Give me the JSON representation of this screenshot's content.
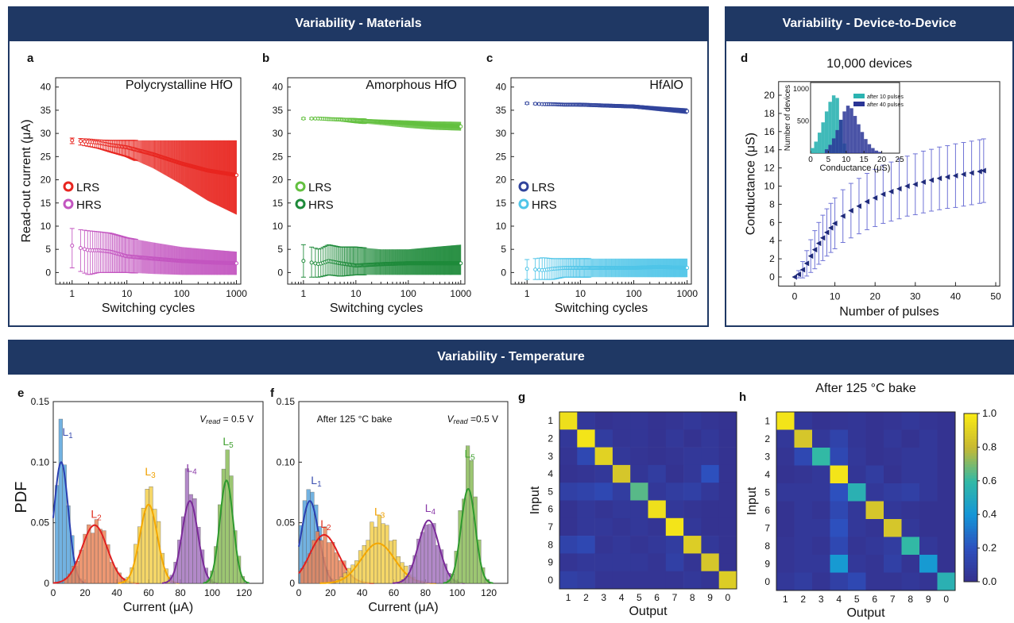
{
  "banners": {
    "materials": "Variability - Materials",
    "device": "Variability - Device-to-Device",
    "temperature": "Variability - Temperature"
  },
  "colors": {
    "banner": "#1f3864",
    "lrs_a": "#e8251f",
    "hrs_a": "#c355c0",
    "lrs_b": "#63c03f",
    "hrs_b": "#1e8a3a",
    "lrs_c": "#31449c",
    "hrs_c": "#4fc5e8",
    "d_series": "#1f2a7a",
    "d_err": "#6f73d6",
    "inset_10": "#2bb3b1",
    "inset_40": "#2a3596"
  },
  "chart_data": [
    {
      "panel": "a",
      "type": "scatter",
      "title": "Polycrystalline HfO",
      "xlabel": "Switching cycles",
      "ylabel": "Read-out current (μA)",
      "xscale": "log",
      "xlim": [
        0.5,
        1200
      ],
      "ylim": [
        -2.5,
        42
      ],
      "xticks": [
        1,
        10,
        100,
        1000
      ],
      "yticks": [
        0,
        5,
        10,
        15,
        20,
        25,
        30,
        35,
        40
      ],
      "series": [
        {
          "name": "LRS",
          "x": [
            1,
            2,
            3,
            5,
            10,
            30,
            100,
            300,
            1000
          ],
          "mean": [
            28.5,
            28.2,
            28.0,
            27.5,
            27.0,
            25.5,
            23.5,
            22.0,
            21.0
          ],
          "err_low": [
            27.8,
            27.2,
            26.8,
            26.0,
            25.0,
            22.5,
            19.0,
            15.5,
            12.5
          ],
          "err_high": [
            29.0,
            28.8,
            28.6,
            28.5,
            28.5,
            28.5,
            28.5,
            28.5,
            28.5
          ]
        },
        {
          "name": "HRS",
          "x": [
            1,
            2,
            3,
            5,
            10,
            30,
            100,
            300,
            1000
          ],
          "mean": [
            5.8,
            4.8,
            4.8,
            4.5,
            3.5,
            3.0,
            2.5,
            2.2,
            2.0
          ],
          "err_low": [
            1.0,
            -0.5,
            0.0,
            0.0,
            0.0,
            -0.3,
            -0.5,
            -0.5,
            -0.5
          ],
          "err_high": [
            9.5,
            9.0,
            8.8,
            8.5,
            7.5,
            6.5,
            5.5,
            5.0,
            4.5
          ]
        }
      ]
    },
    {
      "panel": "b",
      "type": "scatter",
      "title": "Amorphous HfO",
      "xlabel": "Switching cycles",
      "ylabel": "",
      "xscale": "log",
      "xlim": [
        0.5,
        1200
      ],
      "ylim": [
        -2.5,
        42
      ],
      "xticks": [
        1,
        10,
        100,
        1000
      ],
      "yticks": [
        0,
        5,
        10,
        15,
        20,
        25,
        30,
        35,
        40
      ],
      "series": [
        {
          "name": "LRS",
          "x": [
            1,
            2,
            3,
            5,
            10,
            30,
            100,
            300,
            1000
          ],
          "mean": [
            33.2,
            33.2,
            33.1,
            33.0,
            32.8,
            32.5,
            32.2,
            31.8,
            31.5
          ],
          "err_low": [
            33.0,
            33.0,
            32.8,
            32.7,
            32.3,
            31.8,
            31.2,
            30.8,
            30.6
          ],
          "err_high": [
            33.4,
            33.4,
            33.3,
            33.3,
            33.2,
            33.0,
            32.8,
            32.6,
            32.5
          ]
        },
        {
          "name": "HRS",
          "x": [
            1,
            2,
            3,
            5,
            10,
            30,
            100,
            300,
            1000
          ],
          "mean": [
            2.5,
            1.8,
            2.5,
            2.0,
            1.5,
            1.8,
            2.0,
            2.0,
            2.0
          ],
          "err_low": [
            -1.0,
            -1.0,
            -0.5,
            -0.8,
            -0.5,
            -0.5,
            -0.5,
            -0.5,
            -0.5
          ],
          "err_high": [
            6.0,
            5.0,
            6.0,
            5.5,
            5.5,
            5.0,
            5.0,
            5.5,
            6.0
          ]
        }
      ]
    },
    {
      "panel": "c",
      "type": "scatter",
      "title": "HfAlO",
      "xlabel": "Switching cycles",
      "ylabel": "",
      "xscale": "log",
      "xlim": [
        0.5,
        1200
      ],
      "ylim": [
        -2.5,
        42
      ],
      "xticks": [
        1,
        10,
        100,
        1000
      ],
      "yticks": [
        0,
        5,
        10,
        15,
        20,
        25,
        30,
        35,
        40
      ],
      "series": [
        {
          "name": "LRS",
          "x": [
            1,
            2,
            3,
            5,
            10,
            30,
            100,
            300,
            1000
          ],
          "mean": [
            36.5,
            36.3,
            36.3,
            36.2,
            36.2,
            36.0,
            35.8,
            35.3,
            34.8
          ],
          "err_low": [
            36.3,
            36.1,
            36.1,
            36.0,
            35.9,
            35.7,
            35.4,
            34.8,
            34.2
          ],
          "err_high": [
            36.7,
            36.5,
            36.5,
            36.4,
            36.4,
            36.3,
            36.2,
            35.8,
            35.4
          ]
        },
        {
          "name": "HRS",
          "x": [
            1,
            2,
            3,
            5,
            10,
            30,
            100,
            300,
            1000
          ],
          "mean": [
            0.8,
            0.5,
            0.8,
            1.0,
            1.0,
            1.0,
            1.0,
            1.2,
            1.0
          ],
          "err_low": [
            -1.5,
            -1.5,
            -1.5,
            -1.0,
            -1.0,
            -1.0,
            -1.0,
            -1.0,
            -1.0
          ],
          "err_high": [
            2.8,
            3.2,
            3.0,
            3.0,
            3.0,
            3.0,
            3.0,
            3.0,
            3.0
          ]
        }
      ]
    },
    {
      "panel": "d",
      "type": "line",
      "title": "10,000 devices",
      "xlabel": "Number of pulses",
      "ylabel": "Conductance (μS)",
      "xlim": [
        -4,
        51
      ],
      "ylim": [
        -1,
        21.5
      ],
      "xticks": [
        0,
        10,
        20,
        30,
        40,
        50
      ],
      "yticks": [
        0,
        2,
        4,
        6,
        8,
        10,
        12,
        14,
        16,
        18,
        20
      ],
      "x": [
        0,
        1,
        2,
        3,
        4,
        5,
        6,
        7,
        8,
        9,
        10,
        12,
        14,
        16,
        18,
        20,
        22,
        24,
        26,
        28,
        30,
        32,
        34,
        36,
        38,
        40,
        42,
        44,
        46,
        47
      ],
      "mean": [
        0,
        0.3,
        0.8,
        1.5,
        2.3,
        3.0,
        3.7,
        4.3,
        4.9,
        5.4,
        5.9,
        6.7,
        7.3,
        7.8,
        8.3,
        8.7,
        9.1,
        9.4,
        9.7,
        10.0,
        10.2,
        10.45,
        10.65,
        10.85,
        11.0,
        11.15,
        11.3,
        11.45,
        11.6,
        11.7
      ],
      "std": [
        0,
        0.4,
        0.9,
        1.4,
        1.8,
        2.1,
        2.3,
        2.5,
        2.6,
        2.7,
        2.8,
        2.9,
        3.0,
        3.05,
        3.1,
        3.15,
        3.2,
        3.25,
        3.3,
        3.3,
        3.35,
        3.4,
        3.4,
        3.45,
        3.45,
        3.5,
        3.5,
        3.5,
        3.5,
        3.5
      ],
      "inset": {
        "type": "histogram",
        "xlabel": "Conductance (μS)",
        "ylabel": "Number of devices",
        "xlim": [
          0,
          25
        ],
        "xticks": [
          0,
          5,
          10,
          15,
          20,
          25
        ],
        "yticks": [
          500,
          1000
        ],
        "series": [
          {
            "name": "after 10 pulses",
            "bin_centers": [
              0.5,
              1.5,
              2.5,
              3.5,
              4.5,
              5.5,
              6.5,
              7.5,
              8.5,
              9.5
            ],
            "counts": [
              80,
              180,
              320,
              480,
              650,
              800,
              900,
              860,
              520,
              150
            ]
          },
          {
            "name": "after 40 pulses",
            "bin_centers": [
              4.5,
              5.5,
              6.5,
              7.5,
              8.5,
              9.5,
              10.5,
              11.5,
              12.5,
              13.5,
              14.5,
              15.5,
              16.5,
              17.5,
              18.5,
              19.5
            ],
            "counts": [
              60,
              130,
              230,
              360,
              520,
              650,
              740,
              700,
              580,
              450,
              330,
              220,
              140,
              80,
              40,
              20
            ]
          }
        ]
      }
    },
    {
      "panel": "e",
      "type": "histogram",
      "title": "",
      "annotation": "= 0.5 V",
      "annotation_var": "V",
      "annotation_sub": "read",
      "xlabel": "Current (μA)",
      "ylabel": "PDF",
      "xlim": [
        0,
        132
      ],
      "ylim": [
        0,
        0.15
      ],
      "xticks": [
        0,
        20,
        40,
        60,
        80,
        100,
        120
      ],
      "yticks": [
        0,
        0.05,
        0.1,
        0.15
      ],
      "ytick_labels": [
        "0",
        "0.05",
        "0.10",
        "0.15"
      ],
      "series": [
        {
          "name": "L",
          "sub": "1",
          "mean": 5,
          "sd": 4.5,
          "peak": 0.1,
          "hist_peak": 0.118
        },
        {
          "name": "L",
          "sub": "2",
          "mean": 26,
          "sd": 8.0,
          "peak": 0.048,
          "hist_peak": 0.05
        },
        {
          "name": "L",
          "sub": "3",
          "mean": 60,
          "sd": 5.5,
          "peak": 0.065,
          "hist_peak": 0.085
        },
        {
          "name": "L",
          "sub": "4",
          "mean": 86,
          "sd": 5.0,
          "peak": 0.068,
          "hist_peak": 0.088
        },
        {
          "name": "L",
          "sub": "5",
          "mean": 109,
          "sd": 4.2,
          "peak": 0.085,
          "hist_peak": 0.11
        }
      ]
    },
    {
      "panel": "f",
      "type": "histogram",
      "title": "After 125 °C bake",
      "annotation": "=0.5 V",
      "annotation_var": "V",
      "annotation_sub": "read",
      "xlabel": "Current (μA)",
      "ylabel": "",
      "xlim": [
        0,
        132
      ],
      "ylim": [
        0,
        0.15
      ],
      "xticks": [
        0,
        20,
        40,
        60,
        80,
        100,
        120
      ],
      "yticks": [
        0,
        0.05,
        0.1,
        0.15
      ],
      "ytick_labels": [
        "0",
        "0.05",
        "0.10",
        "0.15"
      ],
      "series": [
        {
          "name": "L",
          "sub": "1",
          "mean": 7,
          "sd": 5.5,
          "peak": 0.068,
          "hist_peak": 0.078
        },
        {
          "name": "L",
          "sub": "2",
          "mean": 16,
          "sd": 9.0,
          "peak": 0.04,
          "hist_peak": 0.042
        },
        {
          "name": "L",
          "sub": "3",
          "mean": 50,
          "sd": 10.5,
          "peak": 0.033,
          "hist_peak": 0.052
        },
        {
          "name": "L",
          "sub": "4",
          "mean": 82,
          "sd": 6.5,
          "peak": 0.052,
          "hist_peak": 0.055
        },
        {
          "name": "L",
          "sub": "5",
          "mean": 107,
          "sd": 4.5,
          "peak": 0.078,
          "hist_peak": 0.1
        }
      ]
    },
    {
      "panel": "g",
      "type": "heatmap",
      "title": "",
      "xlabel": "Output",
      "ylabel": "Input",
      "labels": [
        "1",
        "2",
        "3",
        "4",
        "5",
        "6",
        "7",
        "8",
        "9",
        "0"
      ],
      "matrix": [
        [
          0.95,
          0.05,
          0.02,
          0.03,
          0.04,
          0.02,
          0.03,
          0.05,
          0.03,
          0.02
        ],
        [
          0.05,
          0.97,
          0.08,
          0.03,
          0.04,
          0.02,
          0.05,
          0.02,
          0.05,
          0.02
        ],
        [
          0.03,
          0.15,
          0.9,
          0.05,
          0.03,
          0.02,
          0.03,
          0.05,
          0.05,
          0.02
        ],
        [
          0.02,
          0.03,
          0.05,
          0.85,
          0.04,
          0.08,
          0.02,
          0.05,
          0.2,
          0.02
        ],
        [
          0.1,
          0.12,
          0.15,
          0.08,
          0.65,
          0.05,
          0.08,
          0.1,
          0.05,
          0.02
        ],
        [
          0.02,
          0.05,
          0.03,
          0.05,
          0.05,
          0.95,
          0.05,
          0.03,
          0.02,
          0.02
        ],
        [
          0.02,
          0.05,
          0.05,
          0.03,
          0.05,
          0.03,
          0.97,
          0.05,
          0.02,
          0.02
        ],
        [
          0.12,
          0.15,
          0.03,
          0.05,
          0.03,
          0.05,
          0.08,
          0.88,
          0.05,
          0.02
        ],
        [
          0.03,
          0.05,
          0.05,
          0.05,
          0.05,
          0.03,
          0.1,
          0.03,
          0.85,
          0.02
        ],
        [
          0.1,
          0.08,
          0.03,
          0.03,
          0.03,
          0.03,
          0.03,
          0.05,
          0.03,
          0.88
        ]
      ]
    },
    {
      "panel": "h",
      "type": "heatmap",
      "title": "After 125 °C bake",
      "xlabel": "Output",
      "ylabel": "Input",
      "labels": [
        "1",
        "2",
        "3",
        "4",
        "5",
        "6",
        "7",
        "8",
        "9",
        "0"
      ],
      "matrix": [
        [
          0.97,
          0.05,
          0.02,
          0.03,
          0.04,
          0.02,
          0.03,
          0.05,
          0.03,
          0.02
        ],
        [
          0.05,
          0.85,
          0.05,
          0.12,
          0.04,
          0.02,
          0.05,
          0.02,
          0.05,
          0.02
        ],
        [
          0.03,
          0.15,
          0.6,
          0.15,
          0.05,
          0.02,
          0.03,
          0.05,
          0.05,
          0.02
        ],
        [
          0.02,
          0.03,
          0.05,
          0.97,
          0.04,
          0.08,
          0.02,
          0.05,
          0.05,
          0.02
        ],
        [
          0.05,
          0.05,
          0.05,
          0.2,
          0.55,
          0.05,
          0.08,
          0.1,
          0.05,
          0.02
        ],
        [
          0.02,
          0.05,
          0.03,
          0.15,
          0.05,
          0.85,
          0.05,
          0.03,
          0.02,
          0.02
        ],
        [
          0.02,
          0.05,
          0.05,
          0.2,
          0.05,
          0.03,
          0.85,
          0.05,
          0.02,
          0.02
        ],
        [
          0.03,
          0.05,
          0.03,
          0.15,
          0.03,
          0.05,
          0.08,
          0.6,
          0.05,
          0.02
        ],
        [
          0.03,
          0.05,
          0.05,
          0.42,
          0.05,
          0.03,
          0.1,
          0.03,
          0.42,
          0.02
        ],
        [
          0.05,
          0.08,
          0.03,
          0.1,
          0.15,
          0.03,
          0.03,
          0.05,
          0.03,
          0.55
        ]
      ],
      "colorbar": {
        "ticks": [
          0,
          0.2,
          0.4,
          0.6,
          0.8,
          1.0
        ],
        "tick_labels": [
          "0.0",
          "0.2",
          "0.4",
          "0.6",
          "0.8",
          "1.0"
        ]
      }
    }
  ],
  "panel_letters": [
    "a",
    "b",
    "c",
    "d",
    "e",
    "f",
    "g",
    "h"
  ]
}
